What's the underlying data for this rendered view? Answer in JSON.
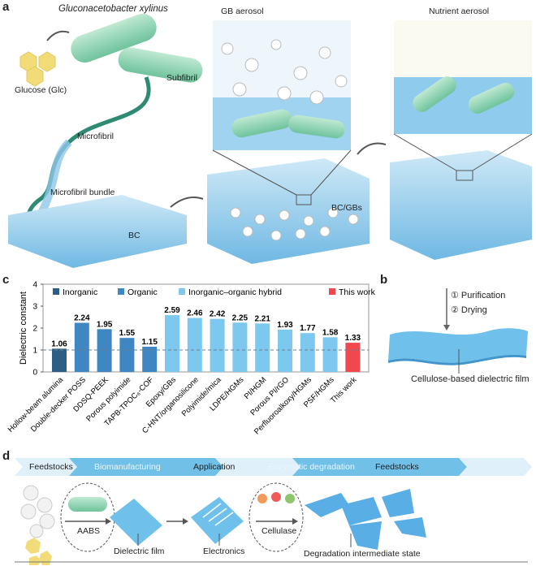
{
  "panel_labels": {
    "a": "a",
    "b": "b",
    "c": "c",
    "d": "d"
  },
  "panel_a": {
    "organism": "Gluconacetobacter xylinus",
    "glucose": "Glucose (Glc)",
    "subfibril": "Subfibril",
    "microfibril": "Microfibril",
    "bundle": "Microfibril bundle",
    "bc": "BC",
    "gb_aerosol": "GB aerosol",
    "bc_gbs": "BC/GBs",
    "nutrient_aerosol": "Nutrient aerosol"
  },
  "panel_b": {
    "step1": "① Purification",
    "step2": "② Drying",
    "film_label": "Cellulose-based dielectric film"
  },
  "panel_d": {
    "stages": [
      "Feedstocks",
      "Biomanufacturing",
      "Application",
      "Enzymatic degradation",
      "Feedstocks"
    ],
    "aabs": "AABS",
    "dielectric_film": "Dielectric film",
    "electronics": "Electronics",
    "cellulase": "Cellulase",
    "degradation": "Degradation intermediate state"
  },
  "chart_data": {
    "type": "bar",
    "ylabel": "Dielectric constant",
    "ylim": [
      0,
      4
    ],
    "yticks": [
      0,
      1,
      2,
      3,
      4
    ],
    "reference_line": 1,
    "legend_position": "top",
    "legend": [
      {
        "name": "Inorganic",
        "color": "#2d5f86"
      },
      {
        "name": "Organic",
        "color": "#3f87c3"
      },
      {
        "name": "Inorganic–organic hybrid",
        "color": "#7cc8ee"
      },
      {
        "name": "This work",
        "color": "#f1484f"
      }
    ],
    "categories": [
      "Hollow-beam alumina",
      "Double-decker POSS",
      "DDSQ-PEEK",
      "Porous polyimide",
      "TAPB-TPOC₆-COF",
      "Epoxy/GBs",
      "C-HNT/organosilicone",
      "Polyimide/mica",
      "LDPE/HGMs",
      "PI/HGM",
      "Porous PI/rGO",
      "Perfluoroalkoxy/HGMs",
      "PSF/HGMs",
      "This work"
    ],
    "values": [
      1.06,
      2.24,
      1.95,
      1.55,
      1.15,
      2.59,
      2.46,
      2.42,
      2.25,
      2.21,
      1.93,
      1.77,
      1.58,
      1.33
    ],
    "value_labels": [
      "1.06",
      "2.24",
      "1.95",
      "1.55",
      "1.15",
      "2.59",
      "2.46",
      "2.42",
      "2.25",
      "2.21",
      "1.93",
      "1.77",
      "1.58",
      "1.33"
    ],
    "groups": [
      0,
      1,
      1,
      1,
      1,
      2,
      2,
      2,
      2,
      2,
      2,
      2,
      2,
      3
    ]
  }
}
